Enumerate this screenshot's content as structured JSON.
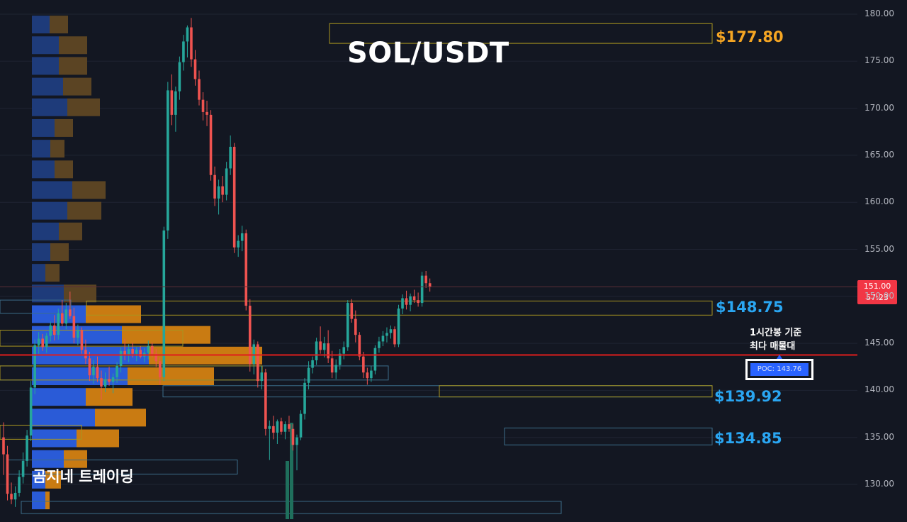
{
  "chart_data": {
    "type": "candlestick",
    "title": "SOL/USDT",
    "watermark": "곰지네 트레이딩",
    "y_axis": {
      "range": [
        127.5,
        181.0
      ],
      "ticks": [
        "180.00",
        "175.00",
        "170.00",
        "165.00",
        "160.00",
        "155.00",
        "150.00",
        "145.00",
        "140.00",
        "135.00",
        "130.00"
      ]
    },
    "last_price": {
      "value": "151.00",
      "countdown": "57:23",
      "color": "#f23645"
    },
    "poc": {
      "label": "POC: 143.76",
      "value": 143.76,
      "note_line1": "1시간봉 기준",
      "note_line2": "최다 매물대",
      "line_color": "#e01c1c"
    },
    "levels": [
      {
        "label": "$177.80",
        "value": 177.8,
        "color": "#f6a623"
      },
      {
        "label": "$148.75",
        "value": 148.75,
        "color": "#2aa6f2"
      },
      {
        "label": "$139.92",
        "value": 139.92,
        "color": "#2aa6f2"
      },
      {
        "label": "$134.85",
        "value": 134.85,
        "color": "#2aa6f2"
      }
    ],
    "volume_profile": {
      "rows": [
        {
          "price": 178.9,
          "buy": 25,
          "sell": 26
        },
        {
          "price": 176.7,
          "buy": 38,
          "sell": 40
        },
        {
          "price": 174.5,
          "buy": 38,
          "sell": 40
        },
        {
          "price": 172.3,
          "buy": 44,
          "sell": 40
        },
        {
          "price": 170.1,
          "buy": 50,
          "sell": 46
        },
        {
          "price": 167.9,
          "buy": 32,
          "sell": 26
        },
        {
          "price": 165.7,
          "buy": 26,
          "sell": 20
        },
        {
          "price": 163.5,
          "buy": 32,
          "sell": 26
        },
        {
          "price": 161.3,
          "buy": 57,
          "sell": 47
        },
        {
          "price": 159.1,
          "buy": 50,
          "sell": 48
        },
        {
          "price": 156.9,
          "buy": 38,
          "sell": 33
        },
        {
          "price": 154.7,
          "buy": 26,
          "sell": 26
        },
        {
          "price": 152.5,
          "buy": 19,
          "sell": 20
        },
        {
          "price": 150.3,
          "buy": 45,
          "sell": 46
        },
        {
          "price": 148.1,
          "buy": 76,
          "sell": 78
        },
        {
          "price": 145.9,
          "buy": 127,
          "sell": 125
        },
        {
          "price": 143.7,
          "buy": 165,
          "sell": 160
        },
        {
          "price": 141.5,
          "buy": 135,
          "sell": 122
        },
        {
          "price": 139.3,
          "buy": 76,
          "sell": 66
        },
        {
          "price": 137.1,
          "buy": 89,
          "sell": 72
        },
        {
          "price": 134.9,
          "buy": 63,
          "sell": 60
        },
        {
          "price": 132.7,
          "buy": 45,
          "sell": 33
        },
        {
          "price": 130.5,
          "buy": 19,
          "sell": 22
        },
        {
          "price": 128.3,
          "buy": 19,
          "sell": 6
        }
      ]
    },
    "candles": [
      [
        135.0,
        136.6,
        131.0,
        133.2
      ],
      [
        133.2,
        134.1,
        128.3,
        129.0
      ],
      [
        129.0,
        130.2,
        127.9,
        128.4
      ],
      [
        128.4,
        129.8,
        127.6,
        129.1
      ],
      [
        129.1,
        131.5,
        128.7,
        130.8
      ],
      [
        130.8,
        133.4,
        130.1,
        132.5
      ],
      [
        132.5,
        135.8,
        131.9,
        135.2
      ],
      [
        135.2,
        141.0,
        134.6,
        140.3
      ],
      [
        140.3,
        145.4,
        139.6,
        144.8
      ],
      [
        144.8,
        146.2,
        143.9,
        145.5
      ],
      [
        145.5,
        146.0,
        144.2,
        144.6
      ],
      [
        144.6,
        146.1,
        144.0,
        145.8
      ],
      [
        145.8,
        147.3,
        145.2,
        146.9
      ],
      [
        146.9,
        148.0,
        145.3,
        145.9
      ],
      [
        145.9,
        148.7,
        145.4,
        148.2
      ],
      [
        148.2,
        149.6,
        146.8,
        147.1
      ],
      [
        147.1,
        149.3,
        146.5,
        148.6
      ],
      [
        148.6,
        150.5,
        147.6,
        147.9
      ],
      [
        147.9,
        148.8,
        145.0,
        145.6
      ],
      [
        145.6,
        147.0,
        144.8,
        146.4
      ],
      [
        146.4,
        146.7,
        143.9,
        144.3
      ],
      [
        144.3,
        145.4,
        142.8,
        143.4
      ],
      [
        143.4,
        144.1,
        141.0,
        141.6
      ],
      [
        141.6,
        143.2,
        140.7,
        142.5
      ],
      [
        142.5,
        143.6,
        140.9,
        141.3
      ],
      [
        141.3,
        142.1,
        139.0,
        140.4
      ],
      [
        140.4,
        141.9,
        139.8,
        141.2
      ],
      [
        141.2,
        142.5,
        140.5,
        140.9
      ],
      [
        140.9,
        141.8,
        139.7,
        141.4
      ],
      [
        141.4,
        143.0,
        140.8,
        142.6
      ],
      [
        142.6,
        144.6,
        141.9,
        144.2
      ],
      [
        144.2,
        145.5,
        143.2,
        143.7
      ],
      [
        143.7,
        144.9,
        143.0,
        144.4
      ],
      [
        144.4,
        145.1,
        143.5,
        143.9
      ],
      [
        143.9,
        144.6,
        143.1,
        144.3
      ],
      [
        144.3,
        144.7,
        143.4,
        143.6
      ],
      [
        143.6,
        144.5,
        143.0,
        144.0
      ],
      [
        144.0,
        145.3,
        143.3,
        144.7
      ],
      [
        144.7,
        145.1,
        143.5,
        143.9
      ],
      [
        143.9,
        144.4,
        142.5,
        143.1
      ],
      [
        143.1,
        143.5,
        140.6,
        141.4
      ],
      [
        141.4,
        157.4,
        141.0,
        157.0
      ],
      [
        157.0,
        172.8,
        156.1,
        171.9
      ],
      [
        171.9,
        173.6,
        168.2,
        169.3
      ],
      [
        169.3,
        172.3,
        167.5,
        171.8
      ],
      [
        171.8,
        175.5,
        170.9,
        174.9
      ],
      [
        174.9,
        177.8,
        174.0,
        177.1
      ],
      [
        177.1,
        178.8,
        175.4,
        178.6
      ],
      [
        178.6,
        179.6,
        174.4,
        175.2
      ],
      [
        175.2,
        176.2,
        172.4,
        173.1
      ],
      [
        173.1,
        174.0,
        170.3,
        170.9
      ],
      [
        170.9,
        171.7,
        168.7,
        169.6
      ],
      [
        169.6,
        170.8,
        168.1,
        169.3
      ],
      [
        169.3,
        169.8,
        162.3,
        162.9
      ],
      [
        162.9,
        163.8,
        159.6,
        160.4
      ],
      [
        160.4,
        162.4,
        158.7,
        161.7
      ],
      [
        161.7,
        162.8,
        160.0,
        160.8
      ],
      [
        160.8,
        164.3,
        160.2,
        163.6
      ],
      [
        163.6,
        167.1,
        162.9,
        165.9
      ],
      [
        165.9,
        166.3,
        154.6,
        155.2
      ],
      [
        155.2,
        156.5,
        154.2,
        155.9
      ],
      [
        155.9,
        157.5,
        154.8,
        156.7
      ],
      [
        156.7,
        157.1,
        148.5,
        149.0
      ],
      [
        149.0,
        149.7,
        142.0,
        142.8
      ],
      [
        142.8,
        145.4,
        141.7,
        144.9
      ],
      [
        144.9,
        145.2,
        140.3,
        141.0
      ],
      [
        141.0,
        142.6,
        140.1,
        141.9
      ],
      [
        141.9,
        142.3,
        135.2,
        135.9
      ],
      [
        135.9,
        136.8,
        132.6,
        136.2
      ],
      [
        136.2,
        137.3,
        134.8,
        135.5
      ],
      [
        135.5,
        136.9,
        134.3,
        136.7
      ],
      [
        136.7,
        137.1,
        135.3,
        135.6
      ],
      [
        135.6,
        136.7,
        134.8,
        136.4
      ],
      [
        136.4,
        137.3,
        135.6,
        135.9
      ],
      [
        135.9,
        136.4,
        133.6,
        134.2
      ],
      [
        134.2,
        135.3,
        131.5,
        135.0
      ],
      [
        135.0,
        137.9,
        134.7,
        137.5
      ],
      [
        137.5,
        141.3,
        136.9,
        140.8
      ],
      [
        140.8,
        143.1,
        140.1,
        142.4
      ],
      [
        142.4,
        143.6,
        141.8,
        143.2
      ],
      [
        143.2,
        145.6,
        142.7,
        145.2
      ],
      [
        145.2,
        146.8,
        143.9,
        144.3
      ],
      [
        144.3,
        145.7,
        143.5,
        145.0
      ],
      [
        145.0,
        146.4,
        142.9,
        143.4
      ],
      [
        143.4,
        144.2,
        141.3,
        141.9
      ],
      [
        141.9,
        143.3,
        141.2,
        142.7
      ],
      [
        142.7,
        144.4,
        142.2,
        143.9
      ],
      [
        143.9,
        145.2,
        143.3,
        144.6
      ],
      [
        144.6,
        149.6,
        144.2,
        149.3
      ],
      [
        149.3,
        149.7,
        147.2,
        147.6
      ],
      [
        147.6,
        148.5,
        145.1,
        145.9
      ],
      [
        145.9,
        146.2,
        143.2,
        143.6
      ],
      [
        143.6,
        144.1,
        141.3,
        141.9
      ],
      [
        141.9,
        142.4,
        140.6,
        141.3
      ],
      [
        141.3,
        142.6,
        140.9,
        142.1
      ],
      [
        142.1,
        144.8,
        141.7,
        144.5
      ],
      [
        144.5,
        145.7,
        144.0,
        145.2
      ],
      [
        145.2,
        146.3,
        144.7,
        145.8
      ],
      [
        145.8,
        146.7,
        145.1,
        146.1
      ],
      [
        146.1,
        146.9,
        145.5,
        146.5
      ],
      [
        146.5,
        146.8,
        144.6,
        144.9
      ],
      [
        144.9,
        149.1,
        144.6,
        148.7
      ],
      [
        148.7,
        150.2,
        148.1,
        149.8
      ],
      [
        149.8,
        150.6,
        148.6,
        149.1
      ],
      [
        149.1,
        150.3,
        148.4,
        150.0
      ],
      [
        150.0,
        150.7,
        149.3,
        149.6
      ],
      [
        149.6,
        150.4,
        148.9,
        149.3
      ],
      [
        149.3,
        152.6,
        148.9,
        152.2
      ],
      [
        152.2,
        152.7,
        150.9,
        151.4
      ],
      [
        151.4,
        151.9,
        150.5,
        151.0
      ]
    ]
  }
}
